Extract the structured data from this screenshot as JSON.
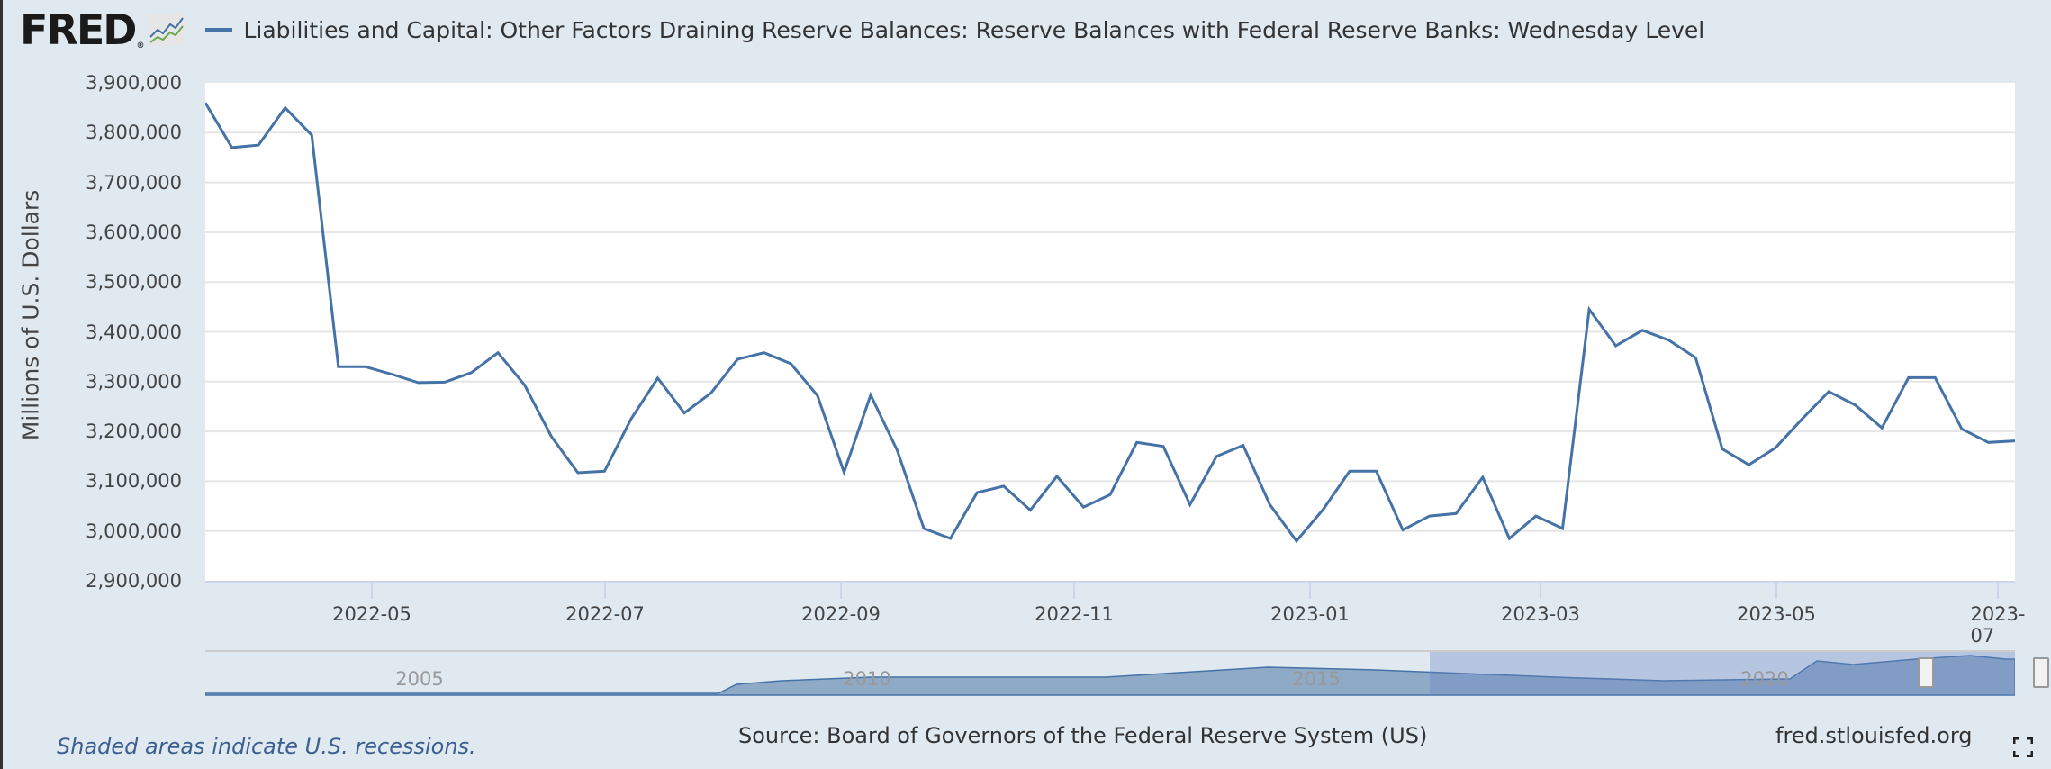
{
  "header": {
    "logo_text": "FRED",
    "logo_mark": "®",
    "logo_icon": "chart-line-icon",
    "series_title": "Liabilities and Capital: Other Factors Draining Reserve Balances: Reserve Balances with Federal Reserve Banks: Wednesday Level",
    "series_color": "#4572a7"
  },
  "axes": {
    "y_title": "Millions of U.S. Dollars",
    "y_ticks": [
      "3,900,000",
      "3,800,000",
      "3,700,000",
      "3,600,000",
      "3,500,000",
      "3,400,000",
      "3,300,000",
      "3,200,000",
      "3,100,000",
      "3,000,000",
      "2,900,000"
    ],
    "x_ticks": [
      "2022-05",
      "2022-07",
      "2022-09",
      "2022-11",
      "2023-01",
      "2023-03",
      "2023-05",
      "2023-07"
    ]
  },
  "navigator": {
    "labels": [
      "2005",
      "2010",
      "2015",
      "2020"
    ]
  },
  "footer": {
    "recession_note": "Shaded areas indicate U.S. recessions.",
    "source": "Source: Board of Governors of the Federal Reserve System (US)",
    "site": "fred.stlouisfed.org",
    "fullscreen_icon": "fullscreen-icon"
  },
  "chart_data": {
    "type": "line",
    "title": "Liabilities and Capital: Other Factors Draining Reserve Balances: Reserve Balances with Federal Reserve Banks: Wednesday Level",
    "xlabel": "",
    "ylabel": "Millions of U.S. Dollars",
    "ylim": [
      2900000,
      3900000
    ],
    "x_range": [
      "2022-03-16",
      "2023-07-12"
    ],
    "x_tick_labels": [
      "2022-05",
      "2022-07",
      "2022-09",
      "2022-11",
      "2023-01",
      "2023-03",
      "2023-05",
      "2023-07"
    ],
    "frequency": "weekly (Wednesday)",
    "grid": true,
    "legend_position": "top",
    "series": [
      {
        "name": "Reserve Balances with Federal Reserve Banks: Wednesday Level",
        "color": "#4572a7",
        "values": [
          3860000,
          3770000,
          3775000,
          3850000,
          3795000,
          3330000,
          3330000,
          3315000,
          3298000,
          3299000,
          3318000,
          3358000,
          3293000,
          3190000,
          3117000,
          3120000,
          3225000,
          3307000,
          3237000,
          3277000,
          3345000,
          3358000,
          3336000,
          3272000,
          3118000,
          3273000,
          3162000,
          3005000,
          2985000,
          3077000,
          3090000,
          3042000,
          3110000,
          3048000,
          3073000,
          3178000,
          3170000,
          3053000,
          3150000,
          3172000,
          3053000,
          2980000,
          3043000,
          3120000,
          3120000,
          3002000,
          3030000,
          3035000,
          3108000,
          2985000,
          3030000,
          3005000,
          3445000,
          3372000,
          3403000,
          3383000,
          3348000,
          3165000,
          3133000,
          3167000,
          3225000,
          3280000,
          3253000,
          3207000,
          3308000,
          3308000,
          3205000,
          3178000,
          3181000
        ]
      }
    ]
  }
}
